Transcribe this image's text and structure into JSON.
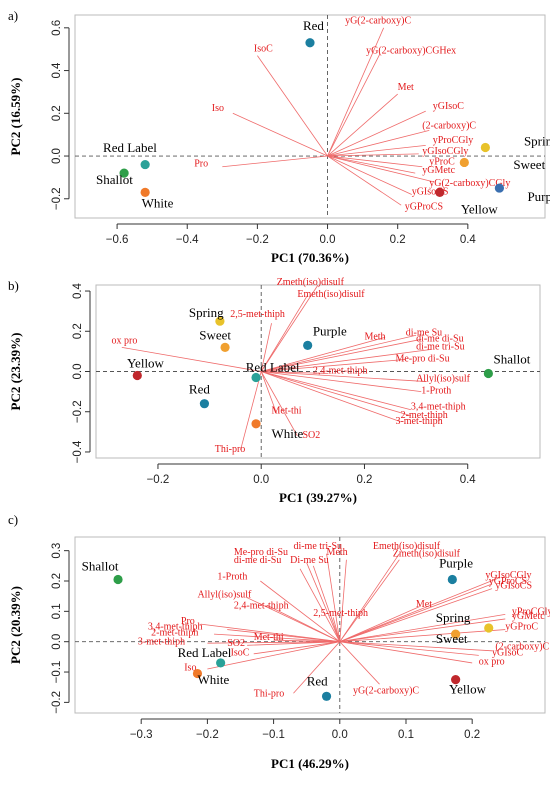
{
  "chart_data": [
    {
      "type": "scatter",
      "panel_label": "a)",
      "xlabel": "PC1 (70.36%)",
      "ylabel": "PC2 (16.59%)",
      "xlim": [
        -0.72,
        0.62
      ],
      "ylim": [
        -0.29,
        0.66
      ],
      "xticks": [
        -0.6,
        -0.4,
        -0.2,
        0.0,
        0.2,
        0.4
      ],
      "yticks": [
        -0.2,
        0.0,
        0.2,
        0.4,
        0.6
      ],
      "xtick_labels": [
        "−0.6",
        "−0.4",
        "−0.2",
        "0.0",
        "0.2",
        "0.4"
      ],
      "ytick_labels": [
        "−0.2",
        "0.0",
        "0.2",
        "0.4",
        "0.6"
      ],
      "grid": false,
      "samples": [
        {
          "name": "Red",
          "x": -0.05,
          "y": 0.53,
          "color": "#1b7fa0",
          "label_x": -0.07,
          "label_y": 0.59
        },
        {
          "name": "Red Label",
          "x": -0.52,
          "y": -0.04,
          "color": "#2aa198",
          "label_x": -0.64,
          "label_y": 0.02
        },
        {
          "name": "Shallot",
          "x": -0.58,
          "y": -0.08,
          "color": "#2e9e49",
          "label_x": -0.66,
          "label_y": -0.13
        },
        {
          "name": "White",
          "x": -0.52,
          "y": -0.17,
          "color": "#f07a2a",
          "label_x": -0.53,
          "label_y": -0.24
        },
        {
          "name": "Spring",
          "x": 0.45,
          "y": 0.04,
          "color": "#e8c22a",
          "label_x": 0.56,
          "label_y": 0.05
        },
        {
          "name": "Sweet",
          "x": 0.39,
          "y": -0.03,
          "color": "#f0a030",
          "label_x": 0.53,
          "label_y": -0.06
        },
        {
          "name": "Purple",
          "x": 0.49,
          "y": -0.15,
          "color": "#3a6fb0",
          "label_x": 0.57,
          "label_y": -0.21
        },
        {
          "name": "Yellow",
          "x": 0.32,
          "y": -0.17,
          "color": "#c0282d",
          "label_x": 0.38,
          "label_y": -0.27
        }
      ],
      "loadings": [
        {
          "name": "yG(2-carboxy)C",
          "x": 0.16,
          "y": 0.6,
          "lx": 0.05,
          "ly": 0.62
        },
        {
          "name": "yG(2-carboxy)CGHex",
          "x": 0.15,
          "y": 0.48,
          "lx": 0.11,
          "ly": 0.48
        },
        {
          "name": "IsoC",
          "x": -0.2,
          "y": 0.47,
          "lx": -0.21,
          "ly": 0.49
        },
        {
          "name": "Met",
          "x": 0.2,
          "y": 0.29,
          "lx": 0.2,
          "ly": 0.31
        },
        {
          "name": "Iso",
          "x": -0.27,
          "y": 0.2,
          "lx": -0.33,
          "ly": 0.21
        },
        {
          "name": "yGIsoC",
          "x": 0.28,
          "y": 0.21,
          "lx": 0.3,
          "ly": 0.22
        },
        {
          "name": "(2-carboxy)C",
          "x": 0.29,
          "y": 0.12,
          "lx": 0.27,
          "ly": 0.13
        },
        {
          "name": "yProCGly",
          "x": 0.28,
          "y": 0.05,
          "lx": 0.3,
          "ly": 0.06
        },
        {
          "name": "yGIsoCGly",
          "x": 0.26,
          "y": 0.01,
          "lx": 0.27,
          "ly": 0.01
        },
        {
          "name": "Pro",
          "x": -0.3,
          "y": -0.05,
          "lx": -0.38,
          "ly": -0.05
        },
        {
          "name": "yProC",
          "x": 0.27,
          "y": -0.05,
          "lx": 0.29,
          "ly": -0.04
        },
        {
          "name": "yGMetc",
          "x": 0.25,
          "y": -0.08,
          "lx": 0.27,
          "ly": -0.08
        },
        {
          "name": "yG(2-carboxy)CGly",
          "x": 0.3,
          "y": -0.12,
          "lx": 0.29,
          "ly": -0.14
        },
        {
          "name": "yGIsoCS",
          "x": 0.24,
          "y": -0.18,
          "lx": 0.24,
          "ly": -0.18
        },
        {
          "name": "yGProCS",
          "x": 0.21,
          "y": -0.23,
          "lx": 0.22,
          "ly": -0.25
        }
      ]
    },
    {
      "type": "scatter",
      "panel_label": "b)",
      "xlabel": "PC1 (39.27%)",
      "ylabel": "PC2 (23.39%)",
      "xlim": [
        -0.32,
        0.54
      ],
      "ylim": [
        -0.43,
        0.43
      ],
      "xticks": [
        -0.2,
        0.0,
        0.2,
        0.4
      ],
      "yticks": [
        -0.4,
        -0.2,
        0.0,
        0.2,
        0.4
      ],
      "xtick_labels": [
        "−0.2",
        "0.0",
        "0.2",
        "0.4"
      ],
      "ytick_labels": [
        "−0.4",
        "−0.2",
        "0.0",
        "0.2",
        "0.4"
      ],
      "grid": false,
      "samples": [
        {
          "name": "Spring",
          "x": -0.08,
          "y": 0.25,
          "color": "#e8c22a",
          "label_x": -0.14,
          "label_y": 0.27
        },
        {
          "name": "Sweet",
          "x": -0.07,
          "y": 0.12,
          "color": "#f0a030",
          "label_x": -0.12,
          "label_y": 0.16
        },
        {
          "name": "Purple",
          "x": 0.09,
          "y": 0.13,
          "color": "#1b7fa0",
          "label_x": 0.1,
          "label_y": 0.18
        },
        {
          "name": "Yellow",
          "x": -0.24,
          "y": -0.02,
          "color": "#c0282d",
          "label_x": -0.26,
          "label_y": 0.02
        },
        {
          "name": "Red Label",
          "x": -0.01,
          "y": -0.03,
          "color": "#2aa198",
          "label_x": -0.03,
          "label_y": 0.0
        },
        {
          "name": "Shallot",
          "x": 0.44,
          "y": -0.01,
          "color": "#2e9e49",
          "label_x": 0.45,
          "label_y": 0.04
        },
        {
          "name": "Red",
          "x": -0.11,
          "y": -0.16,
          "color": "#1b7fa0",
          "label_x": -0.14,
          "label_y": -0.11
        },
        {
          "name": "White",
          "x": -0.01,
          "y": -0.26,
          "color": "#f07a2a",
          "label_x": 0.02,
          "label_y": -0.33
        }
      ],
      "loadings": [
        {
          "name": "Zmeth(iso)disulf",
          "x": 0.11,
          "y": 0.43,
          "lx": 0.03,
          "ly": 0.43
        },
        {
          "name": "Emeth(iso)disulf",
          "x": 0.09,
          "y": 0.38,
          "lx": 0.07,
          "ly": 0.37
        },
        {
          "name": "2,5-met-thiph",
          "x": 0.02,
          "y": 0.24,
          "lx": -0.06,
          "ly": 0.27
        },
        {
          "name": "ox pro",
          "x": -0.27,
          "y": 0.12,
          "lx": -0.29,
          "ly": 0.14
        },
        {
          "name": "Meth",
          "x": 0.24,
          "y": 0.17,
          "lx": 0.2,
          "ly": 0.16
        },
        {
          "name": "di-me Su",
          "x": 0.3,
          "y": 0.18,
          "lx": 0.28,
          "ly": 0.18
        },
        {
          "name": "di-me di-Su",
          "x": 0.31,
          "y": 0.16,
          "lx": 0.3,
          "ly": 0.15
        },
        {
          "name": "di-me tri-Su",
          "x": 0.33,
          "y": 0.11,
          "lx": 0.3,
          "ly": 0.11
        },
        {
          "name": "Me-pro di-Su",
          "x": 0.28,
          "y": 0.06,
          "lx": 0.26,
          "ly": 0.05
        },
        {
          "name": "2,4-met-thiph",
          "x": 0.13,
          "y": -0.01,
          "lx": 0.1,
          "ly": -0.01
        },
        {
          "name": "Allyl(iso)sulf",
          "x": 0.32,
          "y": -0.05,
          "lx": 0.3,
          "ly": -0.05
        },
        {
          "name": "1-Proth",
          "x": 0.31,
          "y": -0.1,
          "lx": 0.31,
          "ly": -0.11
        },
        {
          "name": "3,4-met-thiph",
          "x": 0.29,
          "y": -0.19,
          "lx": 0.29,
          "ly": -0.19
        },
        {
          "name": "2-met-thiph",
          "x": 0.29,
          "y": -0.22,
          "lx": 0.27,
          "ly": -0.23
        },
        {
          "name": "3-met-thiph",
          "x": 0.27,
          "y": -0.25,
          "lx": 0.26,
          "ly": -0.26
        },
        {
          "name": "Met-thi",
          "x": 0.03,
          "y": -0.21,
          "lx": 0.02,
          "ly": -0.21
        },
        {
          "name": "SO2",
          "x": 0.07,
          "y": -0.32,
          "lx": 0.08,
          "ly": -0.33
        },
        {
          "name": "Thi-pro",
          "x": -0.04,
          "y": -0.39,
          "lx": -0.09,
          "ly": -0.4
        }
      ]
    },
    {
      "type": "scatter",
      "panel_label": "c)",
      "xlabel": "PC1 (46.29%)",
      "ylabel": "PC2 (20.39%)",
      "xlim": [
        -0.4,
        0.31
      ],
      "ylim": [
        -0.235,
        0.345
      ],
      "xticks": [
        -0.3,
        -0.2,
        -0.1,
        0.0,
        0.1,
        0.2
      ],
      "yticks": [
        -0.2,
        -0.1,
        0.0,
        0.1,
        0.2,
        0.3
      ],
      "xtick_labels": [
        "−0.3",
        "−0.2",
        "−0.1",
        "0.0",
        "0.1",
        "0.2"
      ],
      "ytick_labels": [
        "−0.2",
        "−0.1",
        "0.0",
        "0.1",
        "0.2",
        "0.3"
      ],
      "grid": false,
      "samples": [
        {
          "name": "Shallot",
          "x": -0.335,
          "y": 0.205,
          "color": "#2e9e49",
          "label_x": -0.39,
          "label_y": 0.235
        },
        {
          "name": "Purple",
          "x": 0.17,
          "y": 0.205,
          "color": "#1b7fa0",
          "label_x": 0.15,
          "label_y": 0.245
        },
        {
          "name": "Spring",
          "x": 0.225,
          "y": 0.045,
          "color": "#e8c22a",
          "label_x": 0.145,
          "label_y": 0.065
        },
        {
          "name": "Sweet",
          "x": 0.175,
          "y": 0.025,
          "color": "#f0a030",
          "label_x": 0.145,
          "label_y": -0.005
        },
        {
          "name": "Yellow",
          "x": 0.175,
          "y": -0.125,
          "color": "#c0282d",
          "label_x": 0.165,
          "label_y": -0.17
        },
        {
          "name": "Red Label",
          "x": -0.18,
          "y": -0.07,
          "color": "#2aa198",
          "label_x": -0.245,
          "label_y": -0.05
        },
        {
          "name": "White",
          "x": -0.215,
          "y": -0.105,
          "color": "#f07a2a",
          "label_x": -0.215,
          "label_y": -0.14
        },
        {
          "name": "Red",
          "x": -0.02,
          "y": -0.18,
          "color": "#1b7fa0",
          "label_x": -0.05,
          "label_y": -0.145
        }
      ],
      "loadings": [
        {
          "name": "Me-pro di-Su",
          "x": -0.05,
          "y": 0.26,
          "lx": -0.16,
          "ly": 0.285
        },
        {
          "name": "di-me di-Su",
          "x": -0.06,
          "y": 0.24,
          "lx": -0.16,
          "ly": 0.26
        },
        {
          "name": "di-me tri-Su",
          "x": -0.02,
          "y": 0.29,
          "lx": -0.07,
          "ly": 0.305
        },
        {
          "name": "Di-me Su",
          "x": -0.04,
          "y": 0.25,
          "lx": -0.075,
          "ly": 0.26
        },
        {
          "name": "Meth",
          "x": 0.01,
          "y": 0.27,
          "lx": -0.02,
          "ly": 0.285
        },
        {
          "name": "Emeth(iso)disulf",
          "x": 0.09,
          "y": 0.29,
          "lx": 0.05,
          "ly": 0.305
        },
        {
          "name": "Zmeth(iso)disulf",
          "x": 0.09,
          "y": 0.27,
          "lx": 0.08,
          "ly": 0.28
        },
        {
          "name": "1-Proth",
          "x": -0.12,
          "y": 0.2,
          "lx": -0.185,
          "ly": 0.205
        },
        {
          "name": "Allyl(iso)sulf",
          "x": -0.14,
          "y": 0.145,
          "lx": -0.215,
          "ly": 0.145
        },
        {
          "name": "2,4-met-thiph",
          "x": -0.11,
          "y": 0.12,
          "lx": -0.16,
          "ly": 0.11
        },
        {
          "name": "2,5-met-thiph",
          "x": -0.01,
          "y": 0.08,
          "lx": -0.04,
          "ly": 0.085
        },
        {
          "name": "Pro",
          "x": -0.21,
          "y": 0.058,
          "lx": -0.24,
          "ly": 0.058
        },
        {
          "name": "3,4-met-thiph",
          "x": -0.17,
          "y": 0.04,
          "lx": -0.29,
          "ly": 0.04
        },
        {
          "name": "2-met-thiph",
          "x": -0.19,
          "y": 0.025,
          "lx": -0.285,
          "ly": 0.02
        },
        {
          "name": "3-met-thiph",
          "x": -0.2,
          "y": -0.005,
          "lx": -0.305,
          "ly": -0.01
        },
        {
          "name": "Met-thi",
          "x": -0.1,
          "y": 0.005,
          "lx": -0.13,
          "ly": 0.005
        },
        {
          "name": "SO2",
          "x": -0.14,
          "y": -0.012,
          "lx": -0.17,
          "ly": -0.015
        },
        {
          "name": "IsoC",
          "x": -0.13,
          "y": -0.04,
          "lx": -0.165,
          "ly": -0.045
        },
        {
          "name": "Iso",
          "x": -0.2,
          "y": -0.09,
          "lx": -0.235,
          "ly": -0.095
        },
        {
          "name": "Thi-pro",
          "x": -0.07,
          "y": -0.17,
          "lx": -0.13,
          "ly": -0.18
        },
        {
          "name": "yG(2-carboxy)C",
          "x": 0.06,
          "y": -0.14,
          "lx": 0.02,
          "ly": -0.17
        },
        {
          "name": "yGIsoCGly",
          "x": 0.24,
          "y": 0.21,
          "lx": 0.22,
          "ly": 0.21
        },
        {
          "name": "yGProCS",
          "x": 0.23,
          "y": 0.19,
          "lx": 0.225,
          "ly": 0.19
        },
        {
          "name": "yGIsoCS",
          "x": 0.23,
          "y": 0.175,
          "lx": 0.235,
          "ly": 0.175
        },
        {
          "name": "Met",
          "x": 0.12,
          "y": 0.115,
          "lx": 0.115,
          "ly": 0.115
        },
        {
          "name": "yProCGly",
          "x": 0.25,
          "y": 0.09,
          "lx": 0.26,
          "ly": 0.09
        },
        {
          "name": "yGMetc",
          "x": 0.25,
          "y": 0.075,
          "lx": 0.26,
          "ly": 0.075
        },
        {
          "name": "yGProC",
          "x": 0.25,
          "y": 0.04,
          "lx": 0.25,
          "ly": 0.04
        },
        {
          "name": "(2-carboxy)C",
          "x": 0.23,
          "y": -0.03,
          "lx": 0.235,
          "ly": -0.025
        },
        {
          "name": "yGIsoC",
          "x": 0.21,
          "y": -0.045,
          "lx": 0.23,
          "ly": -0.045
        },
        {
          "name": "ox pro",
          "x": 0.2,
          "y": -0.07,
          "lx": 0.21,
          "ly": -0.075
        }
      ]
    }
  ]
}
